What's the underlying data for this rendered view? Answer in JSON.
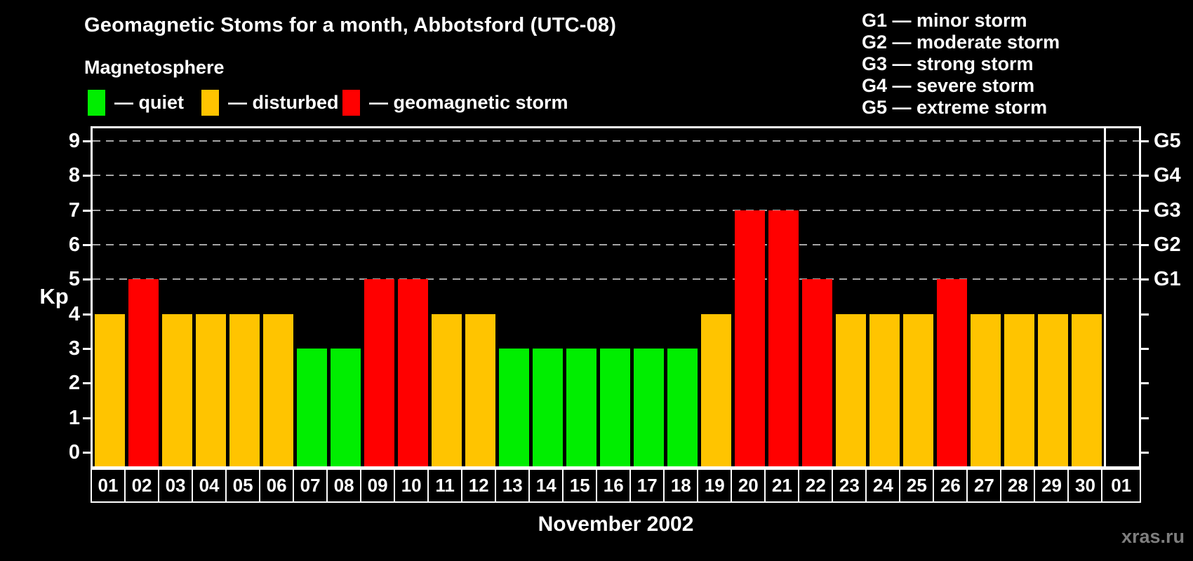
{
  "header": {
    "title": "Geomagnetic Stoms for a month, Abbotsford (UTC-08)",
    "subtitle": "Magnetosphere"
  },
  "legend": {
    "items": [
      {
        "key": "quiet",
        "label": "— quiet"
      },
      {
        "key": "disturbed",
        "label": "— disturbed"
      },
      {
        "key": "storm",
        "label": "— geomagnetic storm"
      }
    ]
  },
  "g_legend": {
    "items": [
      "G1 — minor storm",
      "G2 — moderate storm",
      "G3 — strong storm",
      "G4 — severe storm",
      "G5 — extreme storm"
    ]
  },
  "colors": {
    "quiet": "#00ee00",
    "disturbed": "#ffc400",
    "storm": "#ff0000",
    "grid": "#a6a6a6",
    "axis": "#ffffff",
    "text": "#ffffff",
    "watermark": "#7e7e7e",
    "background": "#000000"
  },
  "chart_data": {
    "type": "bar",
    "title": "Geomagnetic Stoms for a month, Abbotsford (UTC-08)",
    "xlabel": "November 2002",
    "ylabel": "Kp",
    "ylim": [
      0,
      9
    ],
    "grid": "horizontal dashed lines at Kp 5,6,7,8,9 (G1–G5)",
    "legend_position": "top",
    "categories": [
      "01",
      "02",
      "03",
      "04",
      "05",
      "06",
      "07",
      "08",
      "09",
      "10",
      "11",
      "12",
      "13",
      "14",
      "15",
      "16",
      "17",
      "18",
      "19",
      "20",
      "21",
      "22",
      "23",
      "24",
      "25",
      "26",
      "27",
      "28",
      "29",
      "30",
      "01"
    ],
    "values": [
      4,
      5,
      4,
      4,
      4,
      4,
      3,
      3,
      5,
      5,
      4,
      4,
      3,
      3,
      3,
      3,
      3,
      3,
      4,
      7,
      7,
      5,
      4,
      4,
      4,
      5,
      4,
      4,
      4,
      4,
      null
    ],
    "states": [
      "disturbed",
      "storm",
      "disturbed",
      "disturbed",
      "disturbed",
      "disturbed",
      "quiet",
      "quiet",
      "storm",
      "storm",
      "disturbed",
      "disturbed",
      "quiet",
      "quiet",
      "quiet",
      "quiet",
      "quiet",
      "quiet",
      "disturbed",
      "storm",
      "storm",
      "storm",
      "disturbed",
      "disturbed",
      "disturbed",
      "storm",
      "disturbed",
      "disturbed",
      "disturbed",
      "disturbed",
      null
    ],
    "left_ticks": [
      0,
      1,
      2,
      3,
      4,
      5,
      6,
      7,
      8,
      9
    ],
    "right_axis": {
      "labels": [
        "G1",
        "G2",
        "G3",
        "G4",
        "G5"
      ],
      "kp_levels": [
        5,
        6,
        7,
        8,
        9
      ]
    }
  },
  "footer": {
    "month_label": "November 2002",
    "watermark": "xras.ru"
  }
}
